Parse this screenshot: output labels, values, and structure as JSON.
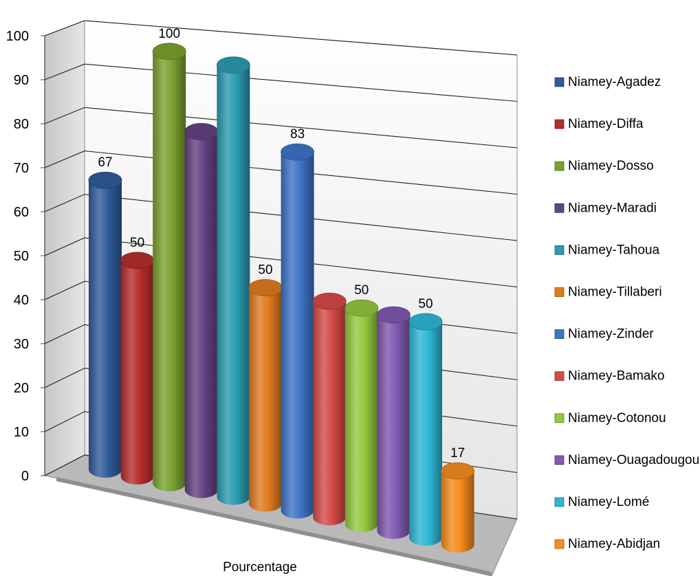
{
  "chart_data": {
    "type": "bar",
    "style": "3d-cylinder",
    "xlabel": "Pourcentage",
    "ylabel": "",
    "ylim": [
      0,
      100
    ],
    "yticks": [
      0,
      10,
      20,
      30,
      40,
      50,
      60,
      70,
      80,
      90,
      100
    ],
    "grid": true,
    "legend_position": "right",
    "series": [
      {
        "name": "Niamey-Agadez",
        "value": 67,
        "label": "67",
        "color": "#2e5c9a"
      },
      {
        "name": "Niamey-Diffa",
        "value": 50,
        "label": "50",
        "color": "#b52e2b"
      },
      {
        "name": "Niamey-Dosso",
        "value": 100,
        "label": "100",
        "color": "#7aa12f"
      },
      {
        "name": "Niamey-Maradi",
        "value": 83,
        "label": "",
        "color": "#634280"
      },
      {
        "name": "Niamey-Tahoua",
        "value": 100,
        "label": "",
        "color": "#2a9bb0"
      },
      {
        "name": "Niamey-Tillaberi",
        "value": 50,
        "label": "50",
        "color": "#e07b1f"
      },
      {
        "name": "Niamey-Zinder",
        "value": 83,
        "label": "83",
        "color": "#3d74c7"
      },
      {
        "name": "Niamey-Bamako",
        "value": 50,
        "label": "",
        "color": "#d34a47"
      },
      {
        "name": "Niamey-Cotonou",
        "value": 50,
        "label": "50",
        "color": "#93c83e"
      },
      {
        "name": "Niamey-Ouagadougou",
        "value": 50,
        "label": "",
        "color": "#8059b0"
      },
      {
        "name": "Niamey-Lomé",
        "value": 50,
        "label": "50",
        "color": "#2db7d6"
      },
      {
        "name": "Niamey-Abidjan",
        "value": 17,
        "label": "17",
        "color": "#f58c1c"
      }
    ]
  }
}
